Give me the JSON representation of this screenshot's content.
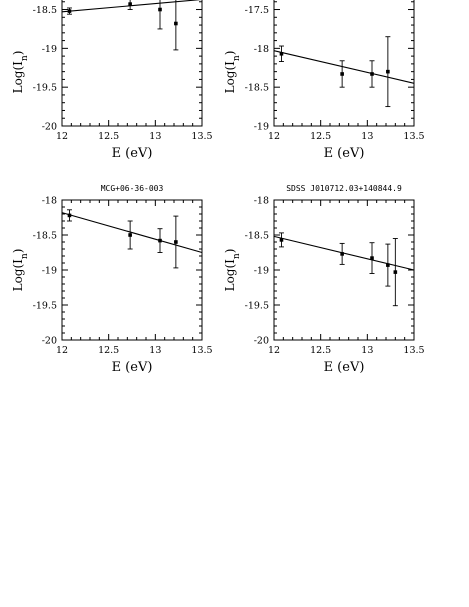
{
  "chart_data": [
    {
      "type": "scatter",
      "title": "",
      "xlabel": "E (eV)",
      "ylabel_base": "Log(I",
      "ylabel_sub": "n",
      "ylabel_close": ")",
      "xlim": [
        12,
        13.5
      ],
      "ylim": [
        -20,
        -18.3
      ],
      "x_ticks": [
        12,
        12.5,
        13,
        13.5
      ],
      "x_tick_labels": [
        "12",
        "12.5",
        "13",
        "13.5"
      ],
      "y_ticks": [
        -18.5,
        -19,
        -19.5,
        -20
      ],
      "y_tick_labels": [
        "-18.5",
        "-19",
        "-19.5",
        "-20"
      ],
      "points": [
        {
          "x": 12.08,
          "y": -18.52,
          "lo": -18.56,
          "hi": -18.48
        },
        {
          "x": 12.73,
          "y": -18.43,
          "lo": -18.5,
          "hi": -18.36
        },
        {
          "x": 13.05,
          "y": -18.5,
          "lo": -18.75,
          "hi": -18.25
        },
        {
          "x": 13.22,
          "y": -18.68,
          "lo": -19.02,
          "hi": -18.34
        }
      ],
      "fit": {
        "x": [
          12,
          13.5
        ],
        "y": [
          -18.53,
          -18.37
        ]
      }
    },
    {
      "type": "scatter",
      "title": "",
      "xlabel": "E (eV)",
      "ylabel_base": "Log(I",
      "ylabel_sub": "n",
      "ylabel_close": ")",
      "xlim": [
        12,
        13.5
      ],
      "ylim": [
        -19,
        -17.3
      ],
      "x_ticks": [
        12,
        12.5,
        13,
        13.5
      ],
      "x_tick_labels": [
        "12",
        "12.5",
        "13",
        "13.5"
      ],
      "y_ticks": [
        -17.5,
        -18,
        -18.5,
        -19
      ],
      "y_tick_labels": [
        "-17.5",
        "-18",
        "-18.5",
        "-19"
      ],
      "points": [
        {
          "x": 12.08,
          "y": -18.07,
          "lo": -18.17,
          "hi": -17.97
        },
        {
          "x": 12.73,
          "y": -18.33,
          "lo": -18.5,
          "hi": -18.16
        },
        {
          "x": 13.05,
          "y": -18.33,
          "lo": -18.5,
          "hi": -18.16
        },
        {
          "x": 13.22,
          "y": -18.3,
          "lo": -18.75,
          "hi": -17.85
        }
      ],
      "fit": {
        "x": [
          12,
          13.5
        ],
        "y": [
          -18.03,
          -18.45
        ]
      }
    },
    {
      "type": "scatter",
      "title": "MCG+06-36-003",
      "xlabel": "E (eV)",
      "ylabel_base": "Log(I",
      "ylabel_sub": "n",
      "ylabel_close": ")",
      "xlim": [
        12,
        13.5
      ],
      "ylim": [
        -20,
        -18
      ],
      "x_ticks": [
        12,
        12.5,
        13,
        13.5
      ],
      "x_tick_labels": [
        "12",
        "12.5",
        "13",
        "13.5"
      ],
      "y_ticks": [
        -18,
        -18.5,
        -19,
        -19.5,
        -20
      ],
      "y_tick_labels": [
        "-18",
        "-18.5",
        "-19",
        "-19.5",
        "-20"
      ],
      "points": [
        {
          "x": 12.08,
          "y": -18.22,
          "lo": -18.3,
          "hi": -18.14
        },
        {
          "x": 12.73,
          "y": -18.5,
          "lo": -18.7,
          "hi": -18.3
        },
        {
          "x": 13.05,
          "y": -18.58,
          "lo": -18.75,
          "hi": -18.41
        },
        {
          "x": 13.22,
          "y": -18.6,
          "lo": -18.97,
          "hi": -18.23
        }
      ],
      "fit": {
        "x": [
          12,
          13.5
        ],
        "y": [
          -18.18,
          -18.75
        ]
      }
    },
    {
      "type": "scatter",
      "title": "SDSS J010712.03+140844.9",
      "xlabel": "E (eV)",
      "ylabel_base": "Log(I",
      "ylabel_sub": "n",
      "ylabel_close": ")",
      "xlim": [
        12,
        13.5
      ],
      "ylim": [
        -20,
        -18
      ],
      "x_ticks": [
        12,
        12.5,
        13,
        13.5
      ],
      "x_tick_labels": [
        "12",
        "12.5",
        "13",
        "13.5"
      ],
      "y_ticks": [
        -18,
        -18.5,
        -19,
        -19.5,
        -20
      ],
      "y_tick_labels": [
        "-18",
        "-18.5",
        "-19",
        "-19.5",
        "-20"
      ],
      "points": [
        {
          "x": 12.08,
          "y": -18.57,
          "lo": -18.67,
          "hi": -18.47
        },
        {
          "x": 12.73,
          "y": -18.77,
          "lo": -18.92,
          "hi": -18.62
        },
        {
          "x": 13.05,
          "y": -18.83,
          "lo": -19.05,
          "hi": -18.61
        },
        {
          "x": 13.22,
          "y": -18.93,
          "lo": -19.23,
          "hi": -18.63
        },
        {
          "x": 13.3,
          "y": -19.03,
          "lo": -19.51,
          "hi": -18.55
        }
      ],
      "fit": {
        "x": [
          12,
          13.5
        ],
        "y": [
          -18.52,
          -19.0
        ]
      }
    }
  ]
}
